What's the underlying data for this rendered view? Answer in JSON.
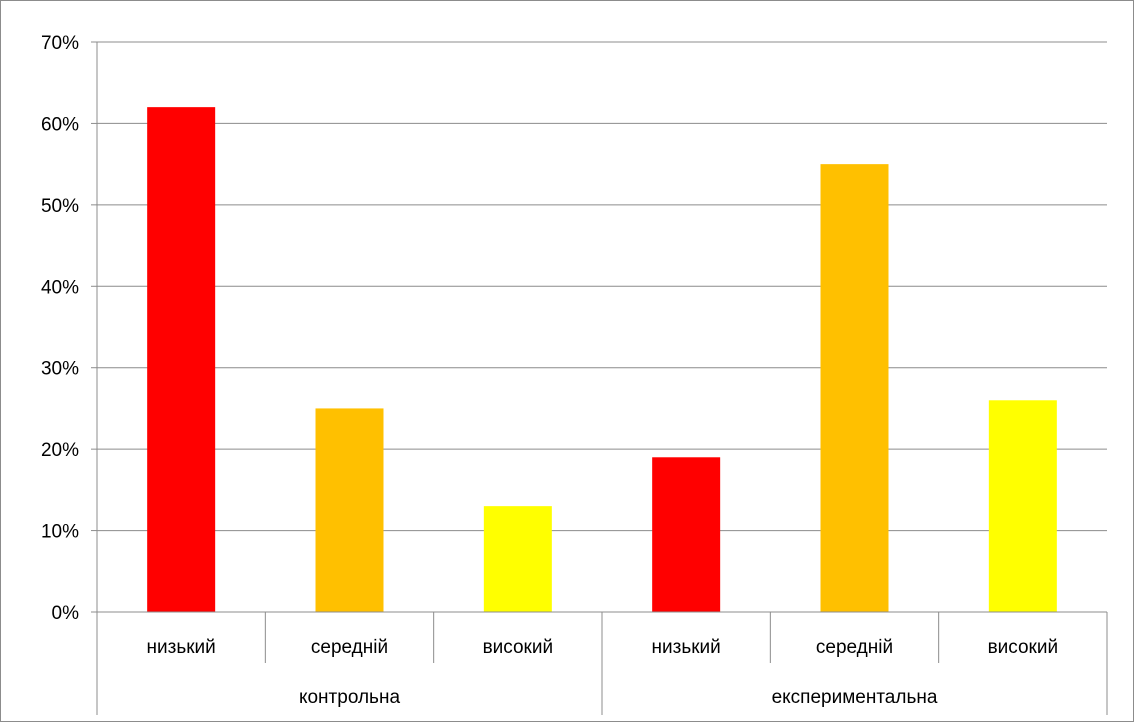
{
  "chart_data": {
    "type": "bar",
    "title": "",
    "xlabel": "",
    "ylabel": "",
    "ylim": [
      0,
      70
    ],
    "y_ticks": [
      "0%",
      "10%",
      "20%",
      "30%",
      "40%",
      "50%",
      "60%",
      "70%"
    ],
    "y_tick_values": [
      0,
      10,
      20,
      30,
      40,
      50,
      60,
      70
    ],
    "grid": true,
    "legend": "none",
    "groups": [
      {
        "label": "контрольна",
        "bars": [
          {
            "category": "низький",
            "value": 62,
            "color": "#ff0000"
          },
          {
            "category": "середній",
            "value": 25,
            "color": "#ffc000"
          },
          {
            "category": "високий",
            "value": 13,
            "color": "#ffff00"
          }
        ]
      },
      {
        "label": "експериментальна",
        "bars": [
          {
            "category": "низький",
            "value": 19,
            "color": "#ff0000"
          },
          {
            "category": "середній",
            "value": 55,
            "color": "#ffc000"
          },
          {
            "category": "високий",
            "value": 26,
            "color": "#ffff00"
          }
        ]
      }
    ]
  }
}
